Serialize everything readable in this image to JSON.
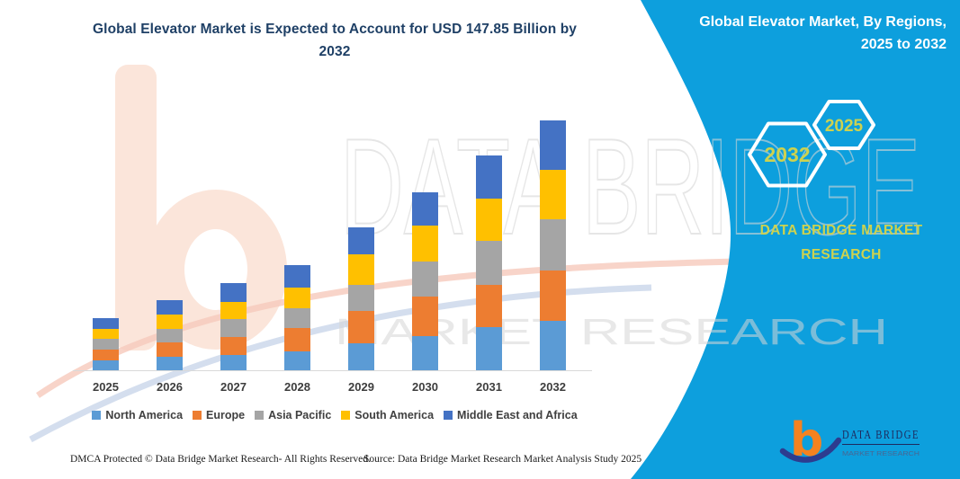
{
  "title": {
    "line1": "Global Elevator Market is Expected to Account for USD 147.85 Billion by",
    "line2": "2032"
  },
  "panel": {
    "title_line1": "Global Elevator Market, By Regions,",
    "title_line2": "2025 to 2032",
    "hexagons": [
      {
        "label": "2032"
      },
      {
        "label": "2025"
      }
    ],
    "brand_line1": "DATA BRIDGE MARKET",
    "brand_line2": "RESEARCH",
    "logo": {
      "name": "DATA BRIDGE",
      "tagline": "MARKET RESEARCH",
      "monogram": "b"
    }
  },
  "watermark": {
    "brand": "DATA BRIDGE",
    "tagline": "MARKET RESEARCH"
  },
  "footer": {
    "dmca": "DMCA Protected © Data Bridge Market Research- All Rights Reserved.",
    "source": "Source: Data Bridge Market Research Market Analysis Study 2025"
  },
  "colors": {
    "panel_blue": "#0d9fdd",
    "accent_yellow_green": "#cdd24f",
    "title_navy": "#1f4066",
    "logo_orange": "#f58220",
    "logo_navy": "#1e2a5e"
  },
  "chart_data": {
    "type": "bar",
    "stacked": true,
    "title": "Global Elevator Market is Expected to Account for USD 147.85 Billion by 2032",
    "unit": "USD Billion",
    "categories": [
      "2025",
      "2026",
      "2027",
      "2028",
      "2029",
      "2030",
      "2031",
      "2032"
    ],
    "series": [
      {
        "name": "North America",
        "color": "#5B9BD5",
        "values": [
          6.6,
          8.5,
          9.8,
          11.7,
          16.7,
          20.7,
          26.0,
          29.9
        ]
      },
      {
        "name": "Europe",
        "color": "#ED7D31",
        "values": [
          6.1,
          8.7,
          10.6,
          13.8,
          18.6,
          23.1,
          24.9,
          29.7
        ]
      },
      {
        "name": "Asia Pacific",
        "color": "#A5A5A5",
        "values": [
          6.4,
          8.0,
          10.1,
          11.9,
          15.6,
          20.7,
          26.0,
          30.2
        ]
      },
      {
        "name": "South America",
        "color": "#FFC000",
        "values": [
          5.6,
          8.0,
          10.1,
          11.9,
          18.0,
          21.7,
          25.2,
          29.2
        ]
      },
      {
        "name": "Middle East and Africa",
        "color": "#4472C4",
        "values": [
          6.6,
          8.7,
          11.1,
          13.3,
          15.9,
          19.3,
          25.2,
          28.9
        ]
      }
    ],
    "totals_estimated": [
      31.3,
      41.9,
      51.7,
      62.6,
      84.8,
      105.5,
      127.3,
      147.9
    ],
    "ylim": [
      0,
      150
    ],
    "grid": false,
    "y_axis_shown": false,
    "legend_position": "bottom"
  }
}
